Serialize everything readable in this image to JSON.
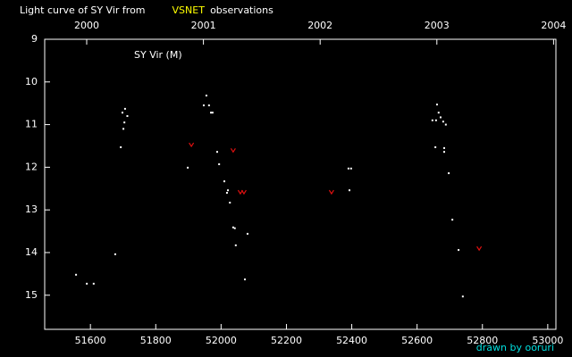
{
  "chart_data": {
    "type": "scatter",
    "title": "Light curve of SY Vir from",
    "title_highlight": "VSNET",
    "title_suffix": "observations",
    "label": "SY Vir (M)",
    "credit": "drawn by ooruri",
    "xlim": [
      51460,
      53025
    ],
    "xticks": [
      51600,
      51800,
      52000,
      52200,
      52400,
      52600,
      52800,
      53000
    ],
    "x2lim": [
      1999.64,
      2004.02
    ],
    "x2ticks": [
      2000,
      2001,
      2002,
      2003,
      2004
    ],
    "ylim": [
      15.8,
      9
    ],
    "yticks": [
      9,
      10,
      11,
      12,
      13,
      14,
      15
    ],
    "y_inverted": true,
    "series": [
      {
        "marker": "dot",
        "color": "#ffffff",
        "x": [
          51556,
          51589,
          51610,
          51676,
          51693,
          51698,
          51706,
          51701,
          51704,
          51713,
          51898,
          51947,
          51955,
          51963,
          51969,
          51974,
          51988,
          51994,
          52010,
          52021,
          52018,
          52027,
          52037,
          52042,
          52045,
          52073,
          52081,
          52393,
          52390,
          52398,
          52647,
          52658,
          52661,
          52666,
          52672,
          52680,
          52688,
          52656,
          52683,
          52683,
          52697,
          52708,
          52727,
          52740
        ],
        "values": [
          14.52,
          14.73,
          14.73,
          14.04,
          11.53,
          10.72,
          10.63,
          11.1,
          10.95,
          10.8,
          12.01,
          10.55,
          10.32,
          10.55,
          10.72,
          10.72,
          11.64,
          11.93,
          12.33,
          12.54,
          12.6,
          12.83,
          13.41,
          13.43,
          13.83,
          14.63,
          13.56,
          12.54,
          12.03,
          12.03,
          10.9,
          10.9,
          10.53,
          10.72,
          10.83,
          10.93,
          11.0,
          11.53,
          11.55,
          11.64,
          12.14,
          13.23,
          13.94,
          15.03
        ]
      },
      {
        "marker": "v",
        "color": "#e01010",
        "x": [
          51909,
          52037,
          52059,
          52070,
          52338,
          52790
        ],
        "values": [
          11.47,
          11.6,
          12.58,
          12.58,
          12.58,
          13.9
        ]
      }
    ]
  }
}
